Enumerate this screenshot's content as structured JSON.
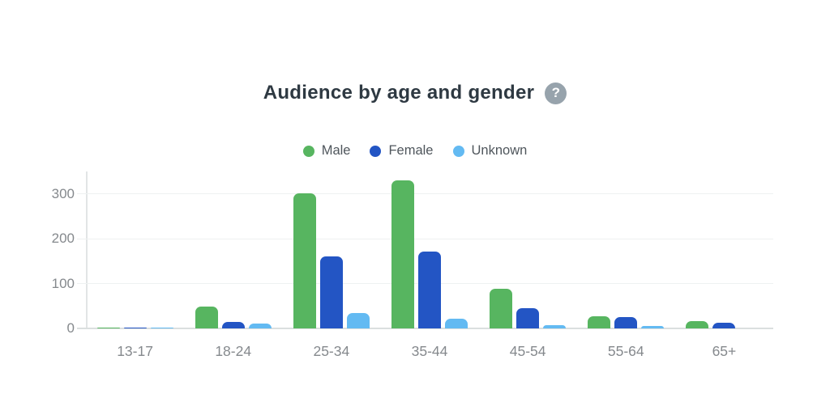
{
  "header": {
    "help_icon": "?"
  },
  "chart_data": {
    "type": "bar",
    "title": "Audience by age and gender",
    "categories": [
      "13-17",
      "18-24",
      "25-34",
      "35-44",
      "45-54",
      "55-64",
      "65+"
    ],
    "series": [
      {
        "name": "Male",
        "color": "#57b560",
        "values": [
          2,
          48,
          302,
          330,
          89,
          28,
          16
        ]
      },
      {
        "name": "Female",
        "color": "#2355c4",
        "values": [
          1,
          14,
          160,
          172,
          46,
          26,
          12
        ]
      },
      {
        "name": "Unknown",
        "color": "#63baf2",
        "values": [
          1,
          11,
          35,
          22,
          8,
          6,
          0
        ]
      }
    ],
    "xlabel": "",
    "ylabel": "",
    "ylim": [
      0,
      350
    ],
    "yticks": [
      0,
      100,
      200,
      300
    ],
    "grid": true,
    "legend_position": "top"
  },
  "colors": {
    "title_text": "#2e3942",
    "legend_text": "#4f565c",
    "tick_label": "#85898d",
    "grid": "#eef1f1",
    "baseline": "#dbdfdf",
    "axis_line": "#e2e5e6",
    "help_icon_bg": "#97a3ac",
    "background": "#ffffff"
  }
}
